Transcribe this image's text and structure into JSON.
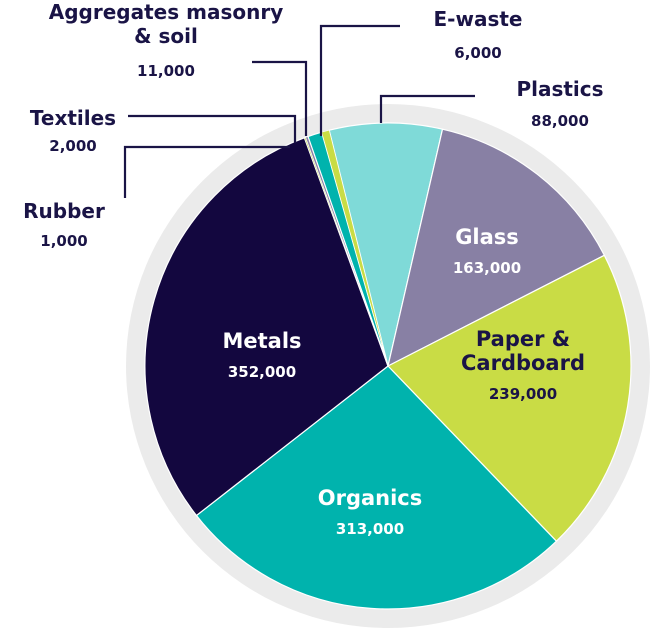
{
  "chart_data": {
    "type": "pie",
    "title": "",
    "unit": "",
    "colors": {
      "ring": "#ebebeb",
      "outline": "#ffffff",
      "leader": "#1a1446",
      "dark_text": "#1a1446",
      "light_text": "#ffffff"
    },
    "slices": [
      {
        "name": "Plastics",
        "value": 88000,
        "label": "88,000",
        "color": "#7fdad8"
      },
      {
        "name": "Glass",
        "value": 163000,
        "label": "163,000",
        "color": "#8880a4"
      },
      {
        "name": "Paper & Cardboard",
        "value": 239000,
        "label": "239,000",
        "color": "#c9dc45"
      },
      {
        "name": "Organics",
        "value": 313000,
        "label": "313,000",
        "color": "#00b3ad"
      },
      {
        "name": "Metals",
        "value": 352000,
        "label": "352,000",
        "color": "#13073f"
      },
      {
        "name": "Rubber",
        "value": 1000,
        "label": "1,000",
        "color": "#c6d95a"
      },
      {
        "name": "Textiles",
        "value": 2000,
        "label": "2,000",
        "color": "#8a82a6"
      },
      {
        "name": "Aggregates masonry & soil",
        "value": 11000,
        "label": "11,000",
        "color": "#00b3ad"
      },
      {
        "name": "E-waste",
        "value": 6000,
        "label": "6,000",
        "color": "#c9dc45"
      }
    ]
  }
}
